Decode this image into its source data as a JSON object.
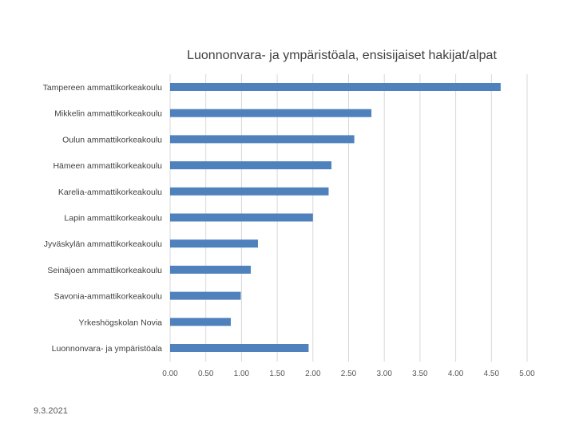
{
  "chart_data": {
    "type": "bar",
    "orientation": "horizontal",
    "title": "Luonnonvara- ja ympäristöala, ensisijaiset hakijat/alpat",
    "categories": [
      "Tampereen ammattikorkeakoulu",
      "Mikkelin ammattikorkeakoulu",
      "Oulun ammattikorkeakoulu",
      "Hämeen ammattikorkeakoulu",
      "Karelia-ammattikorkeakoulu",
      "Lapin ammattikorkeakoulu",
      "Jyväskylän ammattikorkeakoulu",
      "Seinäjoen ammattikorkeakoulu",
      "Savonia-ammattikorkeakoulu",
      "Yrkeshögskolan Novia",
      "Luonnonvara- ja ympäristöala"
    ],
    "values": [
      4.63,
      2.82,
      2.58,
      2.26,
      2.22,
      2.0,
      1.23,
      1.13,
      0.99,
      0.85,
      1.94
    ],
    "xlim": [
      0,
      5
    ],
    "xticks": [
      "0.00",
      "0.50",
      "1.00",
      "1.50",
      "2.00",
      "2.50",
      "3.00",
      "3.50",
      "4.00",
      "4.50",
      "5.00"
    ],
    "grid": "vertical",
    "bar_color": "#4F81BD",
    "grid_color": "#D9D9D9"
  },
  "footer": {
    "date": "9.3.2021"
  }
}
